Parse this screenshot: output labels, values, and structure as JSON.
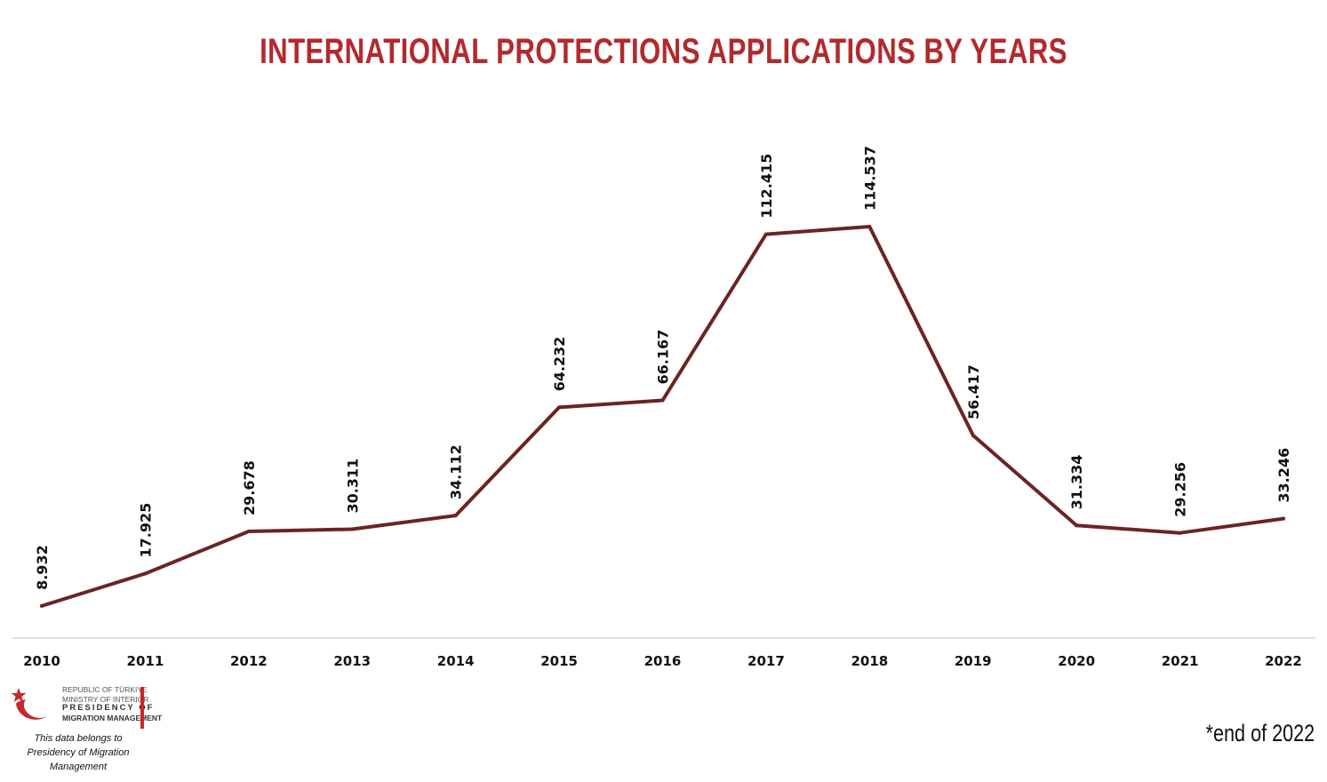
{
  "title": "INTERNATIONAL PROTECTIONS APPLICATIONS BY YEARS",
  "footnote": "*end of 2022",
  "logo": {
    "line1": "REPUBLIC OF TÜRKIYE",
    "line2": "MINISTRY OF INTERIOR",
    "line3": "PRESIDENCY OF",
    "line4": "MIGRATION MANAGEMENT"
  },
  "credit": {
    "line1": "This data belongs to",
    "line2": "Presidency of Migration Management"
  },
  "colors": {
    "title": "#b22a2d",
    "line": "#6b2423",
    "accent": "#c62828",
    "axis": "#d9d9d9",
    "text": "#111111"
  },
  "chart_data": {
    "type": "line",
    "categories": [
      "2010",
      "2011",
      "2012",
      "2013",
      "2014",
      "2015",
      "2016",
      "2017",
      "2018",
      "2019",
      "2020",
      "2021",
      "2022"
    ],
    "series": [
      {
        "values": [
          8932,
          17925,
          29678,
          30311,
          34112,
          64232,
          66167,
          112415,
          114537,
          56417,
          31334,
          29256,
          33246
        ],
        "labels": [
          "8.932",
          "17.925",
          "29.678",
          "30.311",
          "34.112",
          "64.232",
          "66.167",
          "112.415",
          "114.537",
          "56.417",
          "31.334",
          "29.256",
          "33.246"
        ]
      }
    ],
    "title": "INTERNATIONAL PROTECTIONS APPLICATIONS BY YEARS",
    "xlabel": "",
    "ylabel": "",
    "ylim": [
      0,
      142000
    ],
    "grid": false,
    "legend": "none",
    "data_labels": "rotated-vertical"
  }
}
